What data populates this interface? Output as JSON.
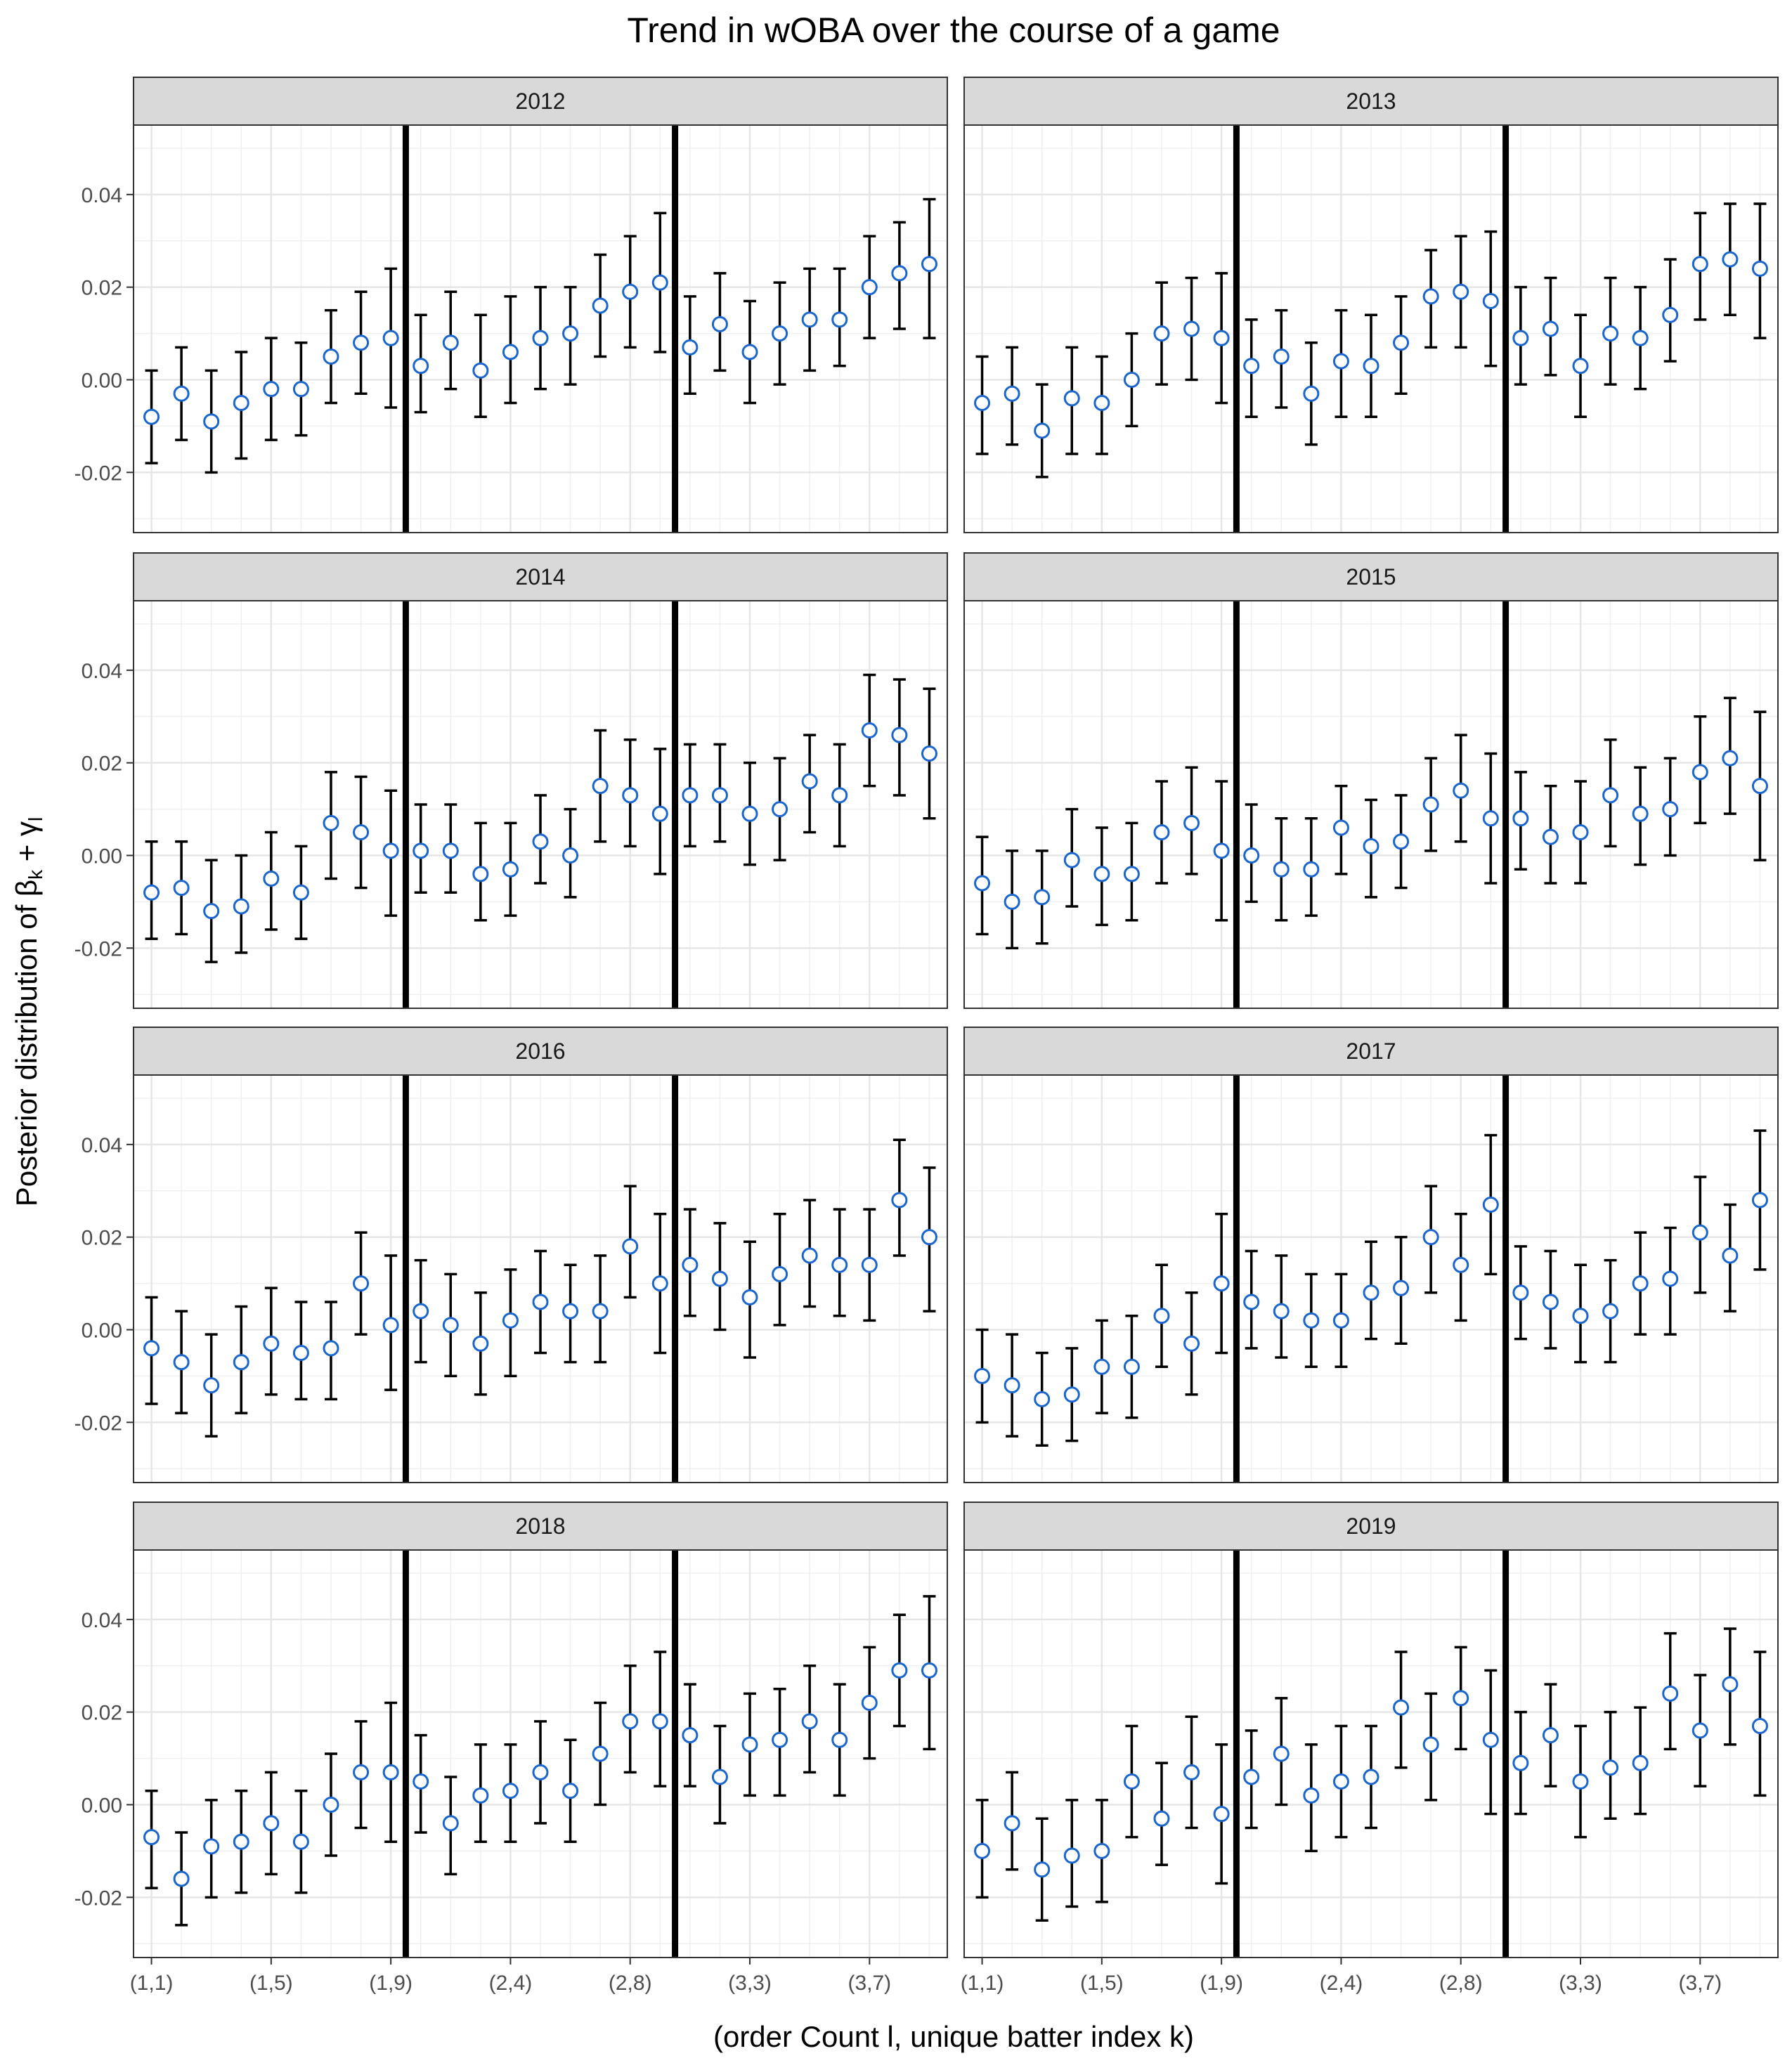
{
  "chart_data": {
    "type": "scatter",
    "title": "Trend in wOBA over the course of a game",
    "xlabel": "(order Count l, unique batter index k)",
    "ylabel": "Posterior distribution of β_k + γ_l",
    "ylabel_parts": {
      "prefix": "Posterior distribution of ",
      "b": "β",
      "bsub": "k",
      "plus": " + ",
      "g": "γ",
      "gsub": "l"
    },
    "x_tick_labels": [
      "(1,1)",
      "(1,5)",
      "(1,9)",
      "(2,4)",
      "(2,8)",
      "(3,3)",
      "(3,7)"
    ],
    "x_tick_index": [
      1,
      5,
      9,
      13,
      17,
      21,
      25
    ],
    "x_count": 27,
    "vertical_lines_after_index": [
      9,
      18
    ],
    "ylim": [
      -0.033,
      0.055
    ],
    "y_ticks": [
      -0.02,
      0.0,
      0.02,
      0.04
    ],
    "y_tick_labels": [
      "-0.02",
      "0.00",
      "0.02",
      "0.04"
    ],
    "grid": true,
    "point_color": "#1a66cc",
    "panels": [
      {
        "label": "2012",
        "mean": [
          -0.008,
          -0.003,
          -0.009,
          -0.005,
          -0.002,
          -0.002,
          0.005,
          0.008,
          0.009,
          0.003,
          0.008,
          0.002,
          0.006,
          0.009,
          0.01,
          0.016,
          0.019,
          0.021,
          0.007,
          0.012,
          0.006,
          0.01,
          0.013,
          0.013,
          0.02,
          0.023,
          0.025
        ],
        "lower": [
          -0.018,
          -0.013,
          -0.02,
          -0.017,
          -0.013,
          -0.012,
          -0.005,
          -0.003,
          -0.006,
          -0.007,
          -0.002,
          -0.008,
          -0.005,
          -0.002,
          -0.001,
          0.005,
          0.007,
          0.006,
          -0.003,
          0.002,
          -0.005,
          -0.001,
          0.002,
          0.003,
          0.009,
          0.011,
          0.009
        ],
        "upper": [
          0.002,
          0.007,
          0.002,
          0.006,
          0.009,
          0.008,
          0.015,
          0.019,
          0.024,
          0.014,
          0.019,
          0.014,
          0.018,
          0.02,
          0.02,
          0.027,
          0.031,
          0.036,
          0.018,
          0.023,
          0.017,
          0.021,
          0.024,
          0.024,
          0.031,
          0.034,
          0.039
        ]
      },
      {
        "label": "2013",
        "mean": [
          -0.005,
          -0.003,
          -0.011,
          -0.004,
          -0.005,
          0.0,
          0.01,
          0.011,
          0.009,
          0.003,
          0.005,
          -0.003,
          0.004,
          0.003,
          0.008,
          0.018,
          0.019,
          0.017,
          0.009,
          0.011,
          0.003,
          0.01,
          0.009,
          0.014,
          0.025,
          0.026,
          0.024
        ],
        "lower": [
          -0.016,
          -0.014,
          -0.021,
          -0.016,
          -0.016,
          -0.01,
          -0.001,
          0.0,
          -0.005,
          -0.008,
          -0.006,
          -0.014,
          -0.008,
          -0.008,
          -0.003,
          0.007,
          0.007,
          0.003,
          -0.001,
          0.001,
          -0.008,
          -0.001,
          -0.002,
          0.004,
          0.013,
          0.014,
          0.009
        ],
        "upper": [
          0.005,
          0.007,
          -0.001,
          0.007,
          0.005,
          0.01,
          0.021,
          0.022,
          0.023,
          0.013,
          0.015,
          0.008,
          0.015,
          0.014,
          0.018,
          0.028,
          0.031,
          0.032,
          0.02,
          0.022,
          0.014,
          0.022,
          0.02,
          0.026,
          0.036,
          0.038,
          0.038
        ]
      },
      {
        "label": "2014",
        "mean": [
          -0.008,
          -0.007,
          -0.012,
          -0.011,
          -0.005,
          -0.008,
          0.007,
          0.005,
          0.001,
          0.001,
          0.001,
          -0.004,
          -0.003,
          0.003,
          0.0,
          0.015,
          0.013,
          0.009,
          0.013,
          0.013,
          0.009,
          0.01,
          0.016,
          0.013,
          0.027,
          0.026,
          0.022
        ],
        "lower": [
          -0.018,
          -0.017,
          -0.023,
          -0.021,
          -0.016,
          -0.018,
          -0.005,
          -0.007,
          -0.013,
          -0.008,
          -0.008,
          -0.014,
          -0.013,
          -0.006,
          -0.009,
          0.003,
          0.002,
          -0.004,
          0.002,
          0.003,
          -0.002,
          -0.001,
          0.005,
          0.002,
          0.015,
          0.013,
          0.008
        ],
        "upper": [
          0.003,
          0.003,
          -0.001,
          0.0,
          0.005,
          0.002,
          0.018,
          0.017,
          0.014,
          0.011,
          0.011,
          0.007,
          0.007,
          0.013,
          0.01,
          0.027,
          0.025,
          0.023,
          0.024,
          0.024,
          0.02,
          0.021,
          0.026,
          0.024,
          0.039,
          0.038,
          0.036
        ]
      },
      {
        "label": "2015",
        "mean": [
          -0.006,
          -0.01,
          -0.009,
          -0.001,
          -0.004,
          -0.004,
          0.005,
          0.007,
          0.001,
          0.0,
          -0.003,
          -0.003,
          0.006,
          0.002,
          0.003,
          0.011,
          0.014,
          0.008,
          0.008,
          0.004,
          0.005,
          0.013,
          0.009,
          0.01,
          0.018,
          0.021,
          0.015
        ],
        "lower": [
          -0.017,
          -0.02,
          -0.019,
          -0.011,
          -0.015,
          -0.014,
          -0.006,
          -0.004,
          -0.014,
          -0.01,
          -0.014,
          -0.013,
          -0.004,
          -0.009,
          -0.007,
          0.001,
          0.003,
          -0.006,
          -0.003,
          -0.006,
          -0.006,
          0.002,
          -0.002,
          0.0,
          0.007,
          0.009,
          -0.001
        ],
        "upper": [
          0.004,
          0.001,
          0.001,
          0.01,
          0.006,
          0.007,
          0.016,
          0.019,
          0.016,
          0.011,
          0.008,
          0.008,
          0.015,
          0.012,
          0.013,
          0.021,
          0.026,
          0.022,
          0.018,
          0.015,
          0.016,
          0.025,
          0.019,
          0.021,
          0.03,
          0.034,
          0.031
        ]
      },
      {
        "label": "2016",
        "mean": [
          -0.004,
          -0.007,
          -0.012,
          -0.007,
          -0.003,
          -0.005,
          -0.004,
          0.01,
          0.001,
          0.004,
          0.001,
          -0.003,
          0.002,
          0.006,
          0.004,
          0.004,
          0.018,
          0.01,
          0.014,
          0.011,
          0.007,
          0.012,
          0.016,
          0.014,
          0.014,
          0.028,
          0.02
        ],
        "lower": [
          -0.016,
          -0.018,
          -0.023,
          -0.018,
          -0.014,
          -0.015,
          -0.015,
          -0.001,
          -0.013,
          -0.007,
          -0.01,
          -0.014,
          -0.01,
          -0.005,
          -0.007,
          -0.007,
          0.007,
          -0.005,
          0.003,
          0.0,
          -0.006,
          0.001,
          0.005,
          0.003,
          0.002,
          0.016,
          0.004
        ],
        "upper": [
          0.007,
          0.004,
          -0.001,
          0.005,
          0.009,
          0.006,
          0.006,
          0.021,
          0.016,
          0.015,
          0.012,
          0.008,
          0.013,
          0.017,
          0.014,
          0.016,
          0.031,
          0.025,
          0.026,
          0.023,
          0.019,
          0.025,
          0.028,
          0.026,
          0.026,
          0.041,
          0.035
        ]
      },
      {
        "label": "2017",
        "mean": [
          -0.01,
          -0.012,
          -0.015,
          -0.014,
          -0.008,
          -0.008,
          0.003,
          -0.003,
          0.01,
          0.006,
          0.004,
          0.002,
          0.002,
          0.008,
          0.009,
          0.02,
          0.014,
          0.027,
          0.008,
          0.006,
          0.003,
          0.004,
          0.01,
          0.011,
          0.021,
          0.016,
          0.028
        ],
        "lower": [
          -0.02,
          -0.023,
          -0.025,
          -0.024,
          -0.018,
          -0.019,
          -0.008,
          -0.014,
          -0.005,
          -0.004,
          -0.006,
          -0.008,
          -0.008,
          -0.002,
          -0.003,
          0.008,
          0.002,
          0.012,
          -0.002,
          -0.004,
          -0.007,
          -0.007,
          -0.001,
          -0.001,
          0.008,
          0.004,
          0.013
        ],
        "upper": [
          0.0,
          -0.001,
          -0.005,
          -0.004,
          0.002,
          0.003,
          0.014,
          0.008,
          0.025,
          0.017,
          0.016,
          0.012,
          0.012,
          0.019,
          0.02,
          0.031,
          0.025,
          0.042,
          0.018,
          0.017,
          0.014,
          0.015,
          0.021,
          0.022,
          0.033,
          0.027,
          0.043
        ]
      },
      {
        "label": "2018",
        "mean": [
          -0.007,
          -0.016,
          -0.009,
          -0.008,
          -0.004,
          -0.008,
          0.0,
          0.007,
          0.007,
          0.005,
          -0.004,
          0.002,
          0.003,
          0.007,
          0.003,
          0.011,
          0.018,
          0.018,
          0.015,
          0.006,
          0.013,
          0.014,
          0.018,
          0.014,
          0.022,
          0.029,
          0.029
        ],
        "lower": [
          -0.018,
          -0.026,
          -0.02,
          -0.019,
          -0.015,
          -0.019,
          -0.011,
          -0.005,
          -0.008,
          -0.006,
          -0.015,
          -0.008,
          -0.008,
          -0.004,
          -0.008,
          0.0,
          0.007,
          0.004,
          0.004,
          -0.004,
          0.002,
          0.002,
          0.007,
          0.002,
          0.01,
          0.017,
          0.012
        ],
        "upper": [
          0.003,
          -0.006,
          0.001,
          0.003,
          0.007,
          0.003,
          0.011,
          0.018,
          0.022,
          0.015,
          0.006,
          0.013,
          0.013,
          0.018,
          0.014,
          0.022,
          0.03,
          0.033,
          0.026,
          0.017,
          0.024,
          0.025,
          0.03,
          0.026,
          0.034,
          0.041,
          0.045
        ]
      },
      {
        "label": "2019",
        "mean": [
          -0.01,
          -0.004,
          -0.014,
          -0.011,
          -0.01,
          0.005,
          -0.003,
          0.007,
          -0.002,
          0.006,
          0.011,
          0.002,
          0.005,
          0.006,
          0.021,
          0.013,
          0.023,
          0.014,
          0.009,
          0.015,
          0.005,
          0.008,
          0.009,
          0.024,
          0.016,
          0.026,
          0.017
        ],
        "lower": [
          -0.02,
          -0.014,
          -0.025,
          -0.022,
          -0.021,
          -0.007,
          -0.013,
          -0.005,
          -0.017,
          -0.005,
          0.0,
          -0.01,
          -0.007,
          -0.005,
          0.008,
          0.001,
          0.012,
          -0.002,
          -0.002,
          0.004,
          -0.007,
          -0.003,
          -0.002,
          0.012,
          0.004,
          0.013,
          0.002
        ],
        "upper": [
          0.001,
          0.007,
          -0.003,
          0.001,
          0.001,
          0.017,
          0.009,
          0.019,
          0.013,
          0.016,
          0.023,
          0.013,
          0.017,
          0.017,
          0.033,
          0.024,
          0.034,
          0.029,
          0.02,
          0.026,
          0.017,
          0.02,
          0.021,
          0.037,
          0.028,
          0.038,
          0.033
        ]
      }
    ]
  }
}
